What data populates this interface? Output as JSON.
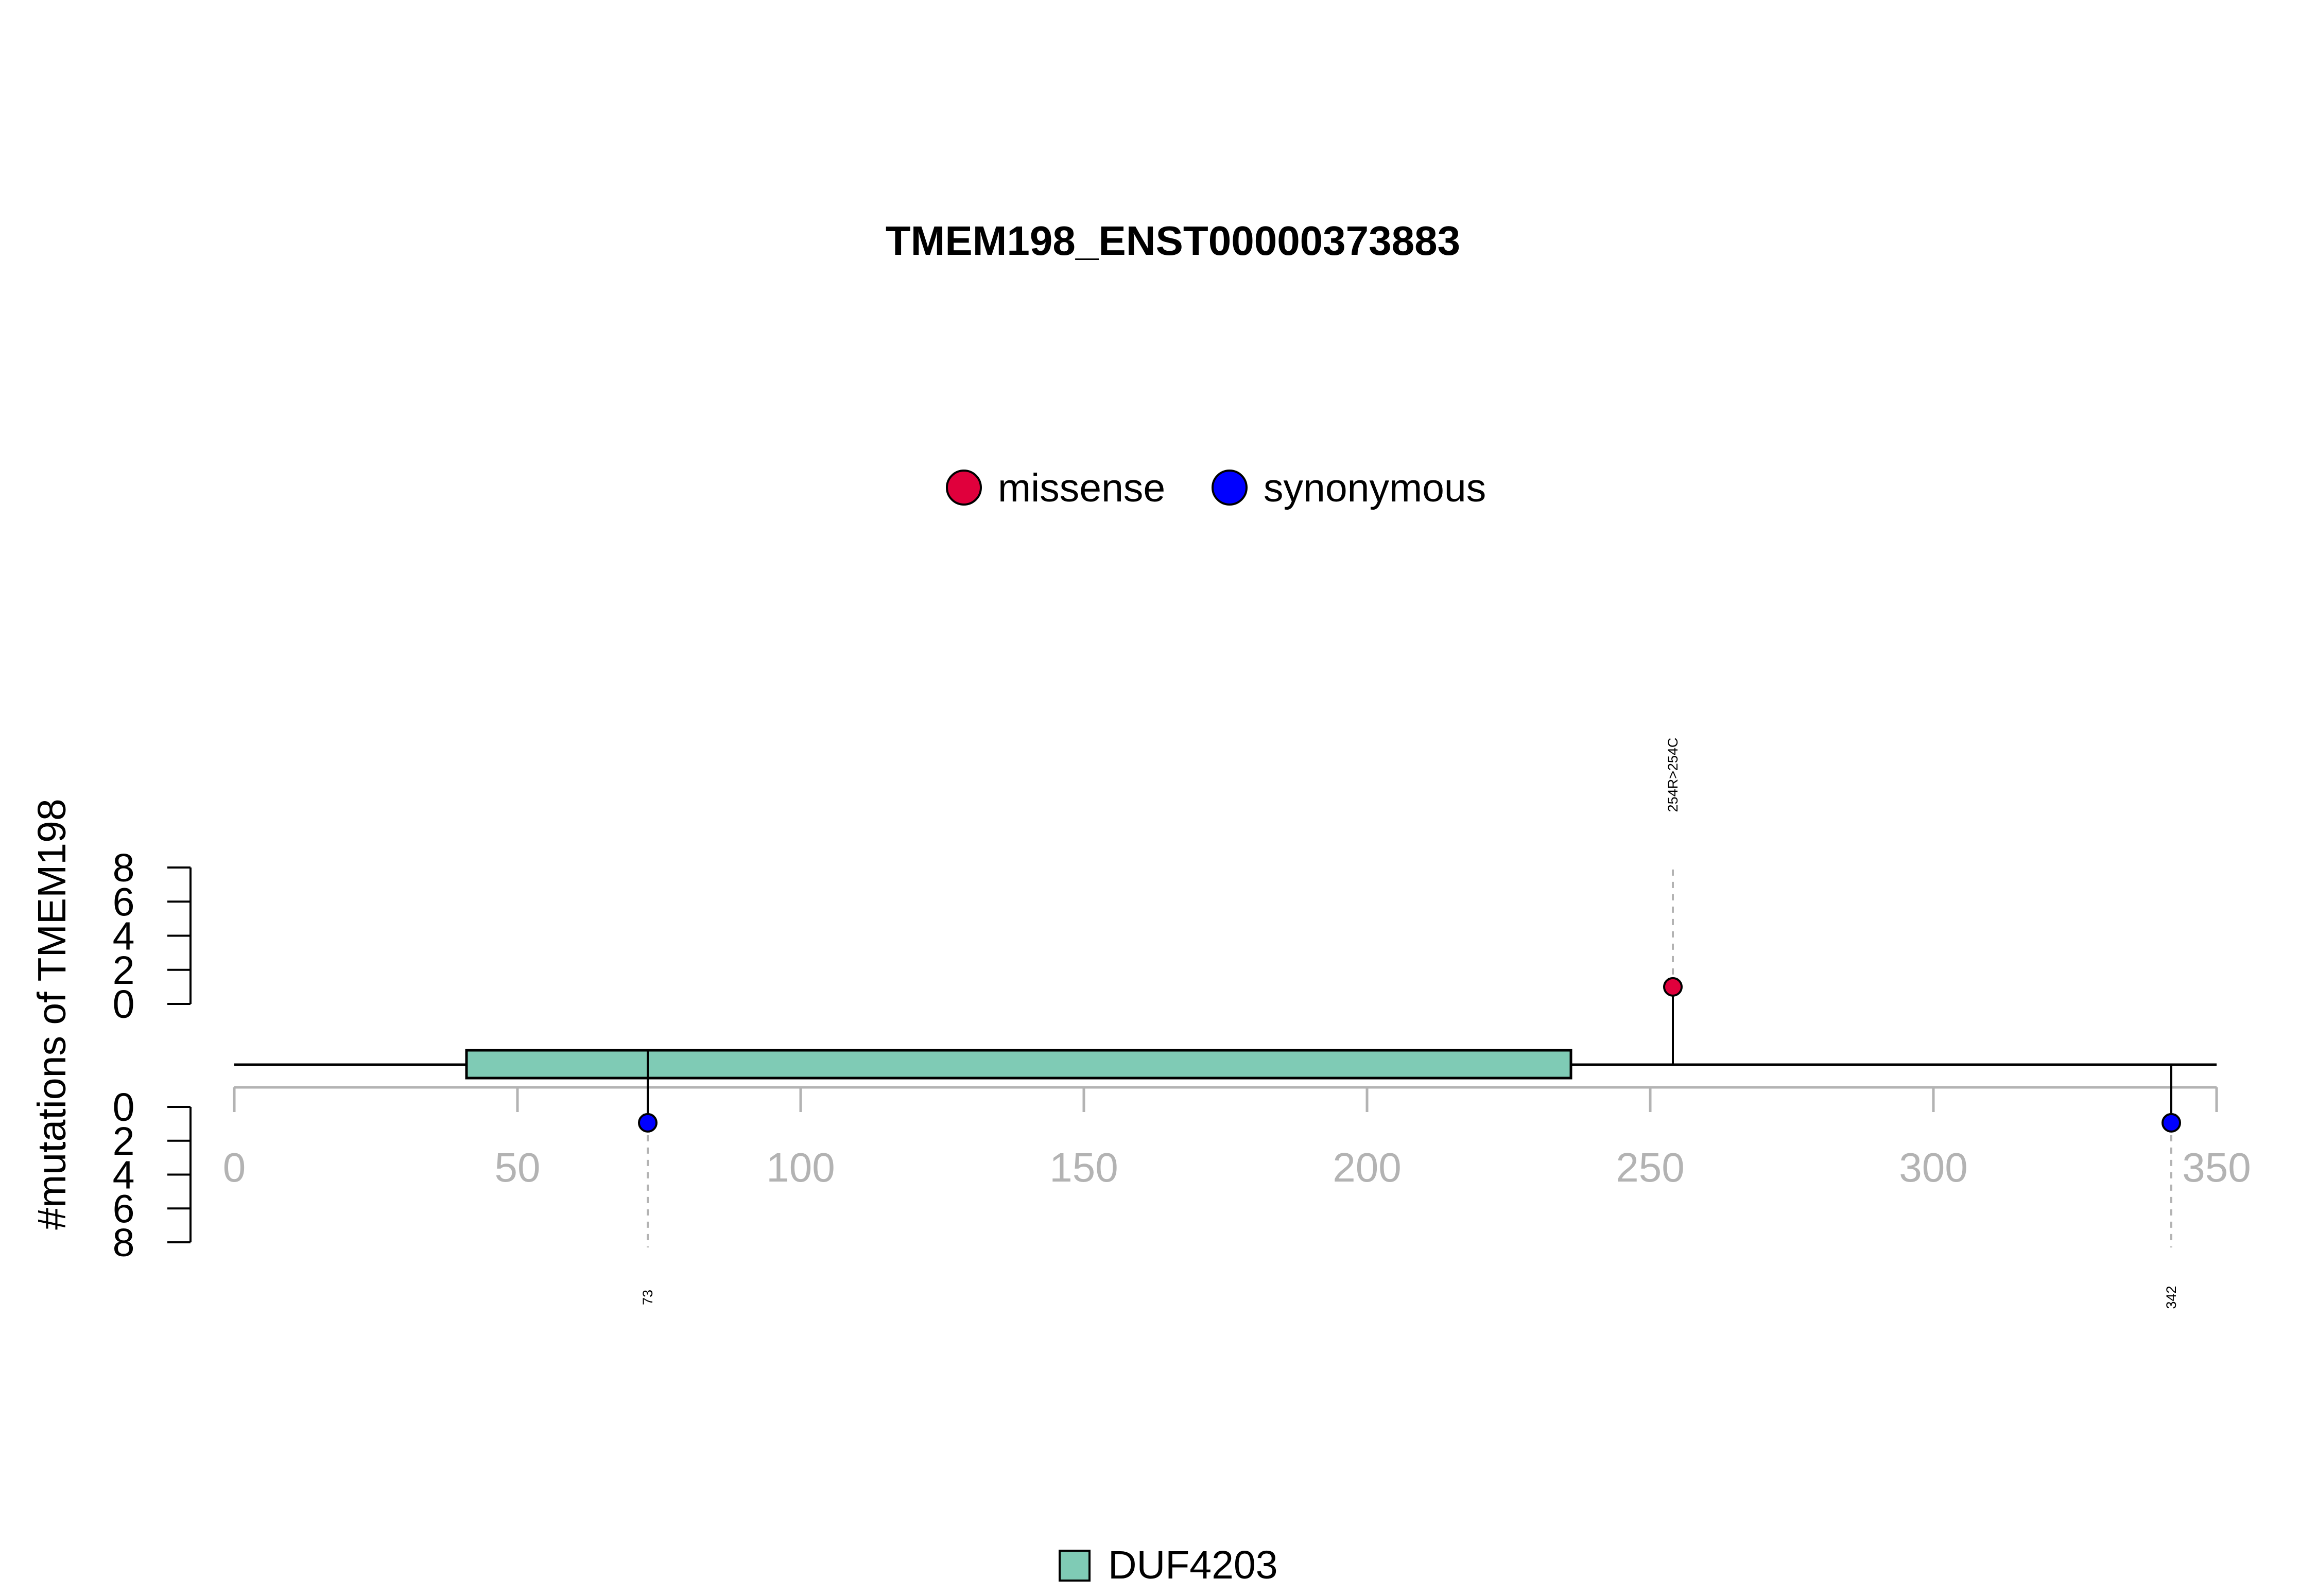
{
  "chart_data": {
    "type": "lollipop",
    "title": "TMEM198_ENST00000373883",
    "ylabel": "#mutations of TMEM198",
    "xlim": [
      0,
      350
    ],
    "x_ticks": [
      "0",
      "50",
      "100",
      "150",
      "200",
      "250",
      "300",
      "350"
    ],
    "x_tick_values": [
      0,
      50,
      100,
      150,
      200,
      250,
      300,
      350
    ],
    "ylim": [
      0,
      8
    ],
    "y_ticks_top": [
      "8",
      "6",
      "4",
      "2",
      "0"
    ],
    "y_ticks_bottom": [
      "0",
      "2",
      "4",
      "6",
      "8"
    ],
    "y_tick_values_top": [
      8,
      6,
      4,
      2,
      0
    ],
    "y_tick_values_bottom": [
      0,
      2,
      4,
      6,
      8
    ],
    "protein_length": 350,
    "domains": [
      {
        "name": "DUF4203",
        "start": 41,
        "end": 236,
        "color": "#7fcbb5"
      }
    ],
    "mutation_legend": [
      {
        "name": "missense",
        "color": "#e0003c"
      },
      {
        "name": "synonymous",
        "color": "#0000ff"
      }
    ],
    "mutations": [
      {
        "position": 254,
        "count": 1,
        "type": "missense",
        "strand": "top",
        "label": "254R>254C",
        "color": "#e0003c"
      },
      {
        "position": 73,
        "count": 1,
        "type": "synonymous",
        "strand": "bottom",
        "label": "73",
        "color": "#0000ff"
      },
      {
        "position": 342,
        "count": 1,
        "type": "synonymous",
        "strand": "bottom",
        "label": "342",
        "color": "#0000ff"
      }
    ],
    "domain_legend": [
      {
        "name": "DUF4203",
        "color": "#7fcbb5"
      }
    ],
    "axis_color": "#b3b3b3",
    "grid": false
  }
}
